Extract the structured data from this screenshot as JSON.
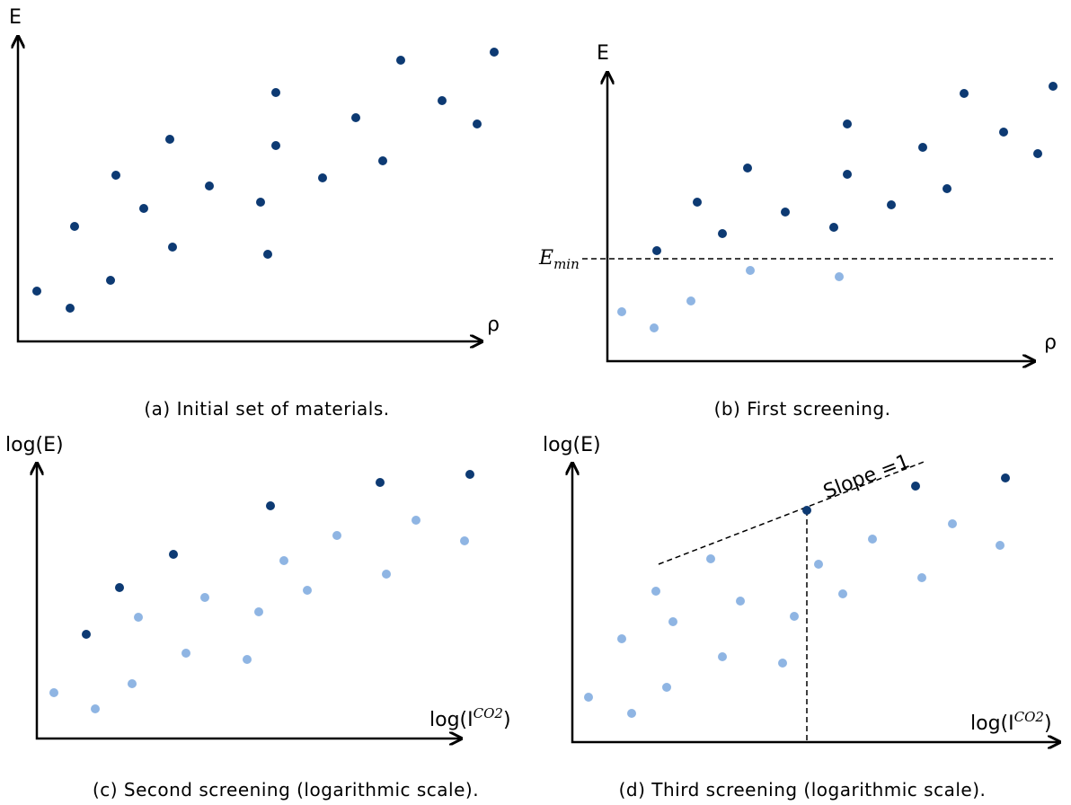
{
  "panels": [
    {
      "y_label": "E",
      "x_label": "ρ",
      "caption": "(a) Initial set of materials."
    },
    {
      "y_label": "E",
      "x_label": "ρ",
      "threshold_label": {
        "base": "E",
        "subscript": "min"
      },
      "caption": "(b) First screening."
    },
    {
      "y_label": "log(E)",
      "x_label": {
        "base": "log(I",
        "superscript": "CO2",
        "end": ")"
      },
      "caption": "(c) Second screening (logarithmic scale)."
    },
    {
      "y_label": "log(E)",
      "x_label": {
        "base": "log(I",
        "superscript": "CO2",
        "end": ")"
      },
      "line_label": "Slope =1",
      "caption": "(d) Third screening (logarithmic scale)."
    }
  ]
}
